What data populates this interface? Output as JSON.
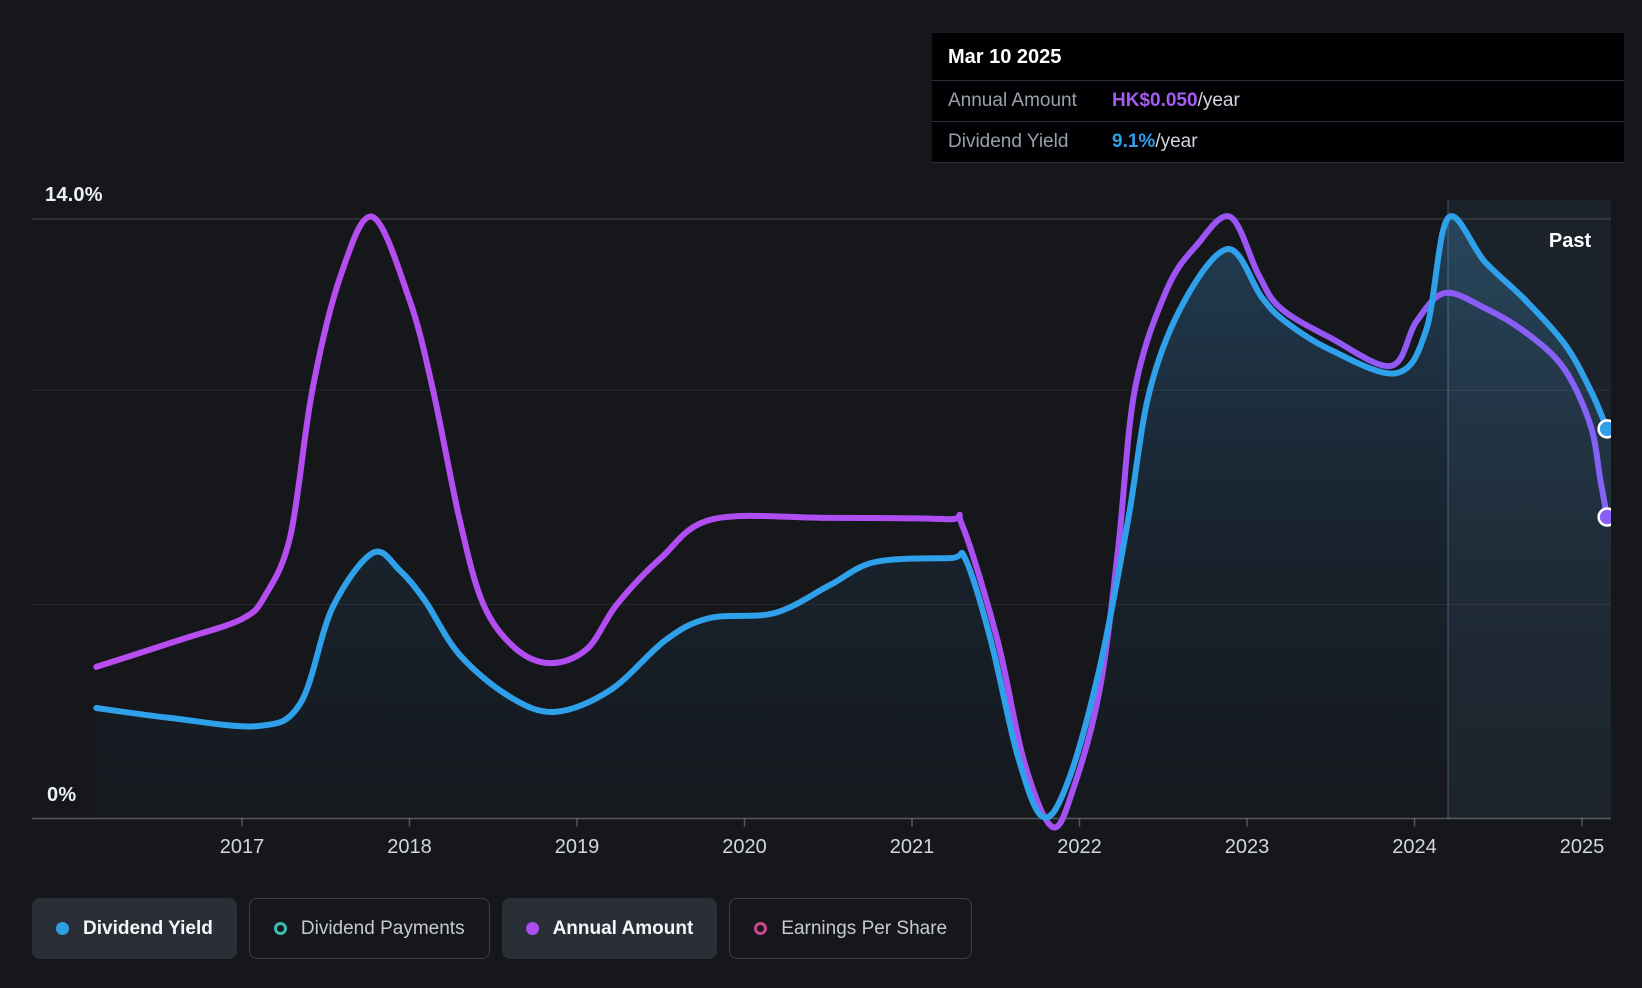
{
  "past_label": "Past",
  "tooltip": {
    "title": "Mar 10 2025",
    "rows": [
      {
        "label": "Annual Amount",
        "value": "HK$0.050",
        "suffix": "/year",
        "color": "#a55cf3"
      },
      {
        "label": "Dividend Yield",
        "value": "9.1%",
        "suffix": "/year",
        "color": "#2f9fe8"
      }
    ]
  },
  "legend": {
    "items": [
      {
        "label": "Dividend Yield",
        "active": true,
        "swatch": "filled",
        "color": "#2e9fe6"
      },
      {
        "label": "Dividend Payments",
        "active": false,
        "swatch": "ring",
        "color": "#3fbdb2"
      },
      {
        "label": "Annual Amount",
        "active": true,
        "swatch": "filled",
        "color": "#ac4ef0"
      },
      {
        "label": "Earnings Per Share",
        "active": false,
        "swatch": "ring",
        "color": "#c9488f"
      }
    ]
  },
  "chart_data": {
    "type": "line",
    "title": "Dividend history (yield % and annual amount) with past-12-months highlight",
    "x_axis": {
      "labels": [
        "2017",
        "2018",
        "2019",
        "2020",
        "2021",
        "2022",
        "2023",
        "2024",
        "2025"
      ],
      "range": [
        2016.13,
        2025.17
      ]
    },
    "y_axis": {
      "labels": [
        {
          "text": "14.0%",
          "pct": 14.0
        },
        {
          "text": "0%",
          "pct": 0.0
        }
      ],
      "gridlines_pct": [
        14,
        10,
        5
      ],
      "range": [
        0,
        14
      ],
      "unit": "%"
    },
    "past_region": {
      "label": "Past",
      "start_x": 2024.2,
      "end_x": 2025.17
    },
    "series": [
      {
        "name": "Dividend Yield",
        "type": "line+area",
        "unit": "percent",
        "color": "#2fa0ea",
        "end_value_label": "9.1%/year",
        "points": [
          [
            2016.13,
            2.58
          ],
          [
            2016.57,
            2.35
          ],
          [
            2017.1,
            2.16
          ],
          [
            2017.35,
            2.7
          ],
          [
            2017.54,
            4.92
          ],
          [
            2017.78,
            6.2
          ],
          [
            2017.94,
            5.8
          ],
          [
            2018.09,
            5.1
          ],
          [
            2018.3,
            3.82
          ],
          [
            2018.6,
            2.84
          ],
          [
            2018.87,
            2.49
          ],
          [
            2019.2,
            3.0
          ],
          [
            2019.53,
            4.17
          ],
          [
            2019.79,
            4.68
          ],
          [
            2020.18,
            4.8
          ],
          [
            2020.51,
            5.45
          ],
          [
            2020.78,
            5.99
          ],
          [
            2021.23,
            6.08
          ],
          [
            2021.32,
            6.05
          ],
          [
            2021.47,
            4.17
          ],
          [
            2021.63,
            1.48
          ],
          [
            2021.78,
            0.04
          ],
          [
            2021.93,
            0.85
          ],
          [
            2022.12,
            3.51
          ],
          [
            2022.29,
            6.97
          ],
          [
            2022.42,
            10.01
          ],
          [
            2022.63,
            12.11
          ],
          [
            2022.89,
            13.3
          ],
          [
            2023.09,
            12.16
          ],
          [
            2023.23,
            11.6
          ],
          [
            2023.5,
            10.94
          ],
          [
            2023.89,
            10.4
          ],
          [
            2024.07,
            11.41
          ],
          [
            2024.2,
            14.02
          ],
          [
            2024.42,
            13.0
          ],
          [
            2024.66,
            12.11
          ],
          [
            2024.9,
            11.06
          ],
          [
            2025.05,
            10.01
          ],
          [
            2025.15,
            9.1
          ]
        ]
      },
      {
        "name": "Annual Amount",
        "type": "line",
        "unit": "plotted on hidden HK$ scale (values below are chart-percent positions)",
        "current_value": "HK$0.050/year",
        "color_start": "#b84df0",
        "color_end": "#8463f6",
        "points": [
          [
            2016.13,
            3.54
          ],
          [
            2016.63,
            4.17
          ],
          [
            2017.0,
            4.66
          ],
          [
            2017.14,
            5.22
          ],
          [
            2017.29,
            6.62
          ],
          [
            2017.42,
            10.01
          ],
          [
            2017.59,
            12.69
          ],
          [
            2017.78,
            14.05
          ],
          [
            2018.0,
            12.11
          ],
          [
            2018.14,
            10.01
          ],
          [
            2018.3,
            6.97
          ],
          [
            2018.44,
            5.01
          ],
          [
            2018.63,
            3.98
          ],
          [
            2018.84,
            3.63
          ],
          [
            2019.06,
            3.96
          ],
          [
            2019.24,
            5.01
          ],
          [
            2019.5,
            6.08
          ],
          [
            2019.81,
            6.99
          ],
          [
            2020.51,
            7.02
          ],
          [
            2021.21,
            6.99
          ],
          [
            2021.3,
            6.85
          ],
          [
            2021.51,
            4.17
          ],
          [
            2021.67,
            1.32
          ],
          [
            2021.84,
            -0.2
          ],
          [
            2021.97,
            0.78
          ],
          [
            2022.12,
            3.0
          ],
          [
            2022.23,
            6.27
          ],
          [
            2022.33,
            10.01
          ],
          [
            2022.52,
            12.34
          ],
          [
            2022.7,
            13.39
          ],
          [
            2022.9,
            14.05
          ],
          [
            2023.07,
            12.69
          ],
          [
            2023.2,
            11.92
          ],
          [
            2023.5,
            11.22
          ],
          [
            2023.86,
            10.57
          ],
          [
            2024.01,
            11.6
          ],
          [
            2024.18,
            12.27
          ],
          [
            2024.42,
            11.92
          ],
          [
            2024.66,
            11.36
          ],
          [
            2024.89,
            10.52
          ],
          [
            2025.05,
            9.19
          ],
          [
            2025.11,
            7.9
          ],
          [
            2025.15,
            7.04
          ]
        ]
      }
    ],
    "colors": {
      "background": "#15171b",
      "area_fill_top": "rgba(64,150,214,0.30)",
      "area_fill_bottom": "rgba(40,90,130,0.03)",
      "past_band": "rgba(127,178,223,0.07)",
      "past_band_edge": "rgba(150,190,230,0.25)",
      "gridline_major": "rgba(255,255,255,0.20)",
      "gridline_minor": "rgba(255,255,255,0.08)",
      "baseline": "rgba(255,255,255,0.28)"
    }
  }
}
